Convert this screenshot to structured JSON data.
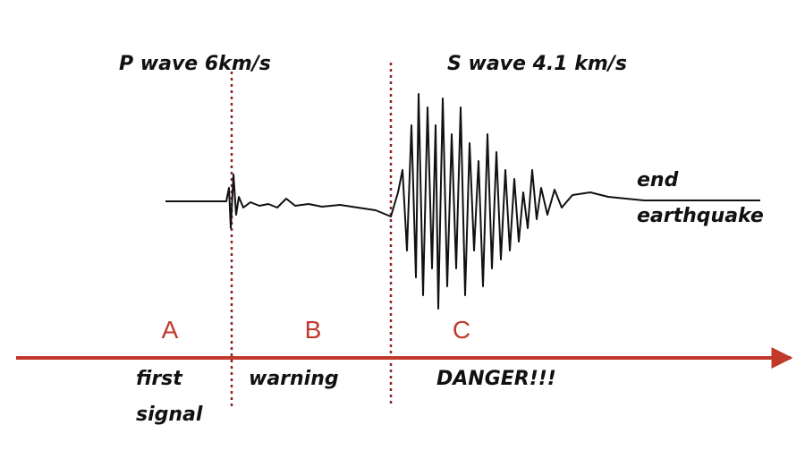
{
  "wave_labels": {
    "p_wave": "P wave 6km/s",
    "s_wave": "S wave 4.1 km/s",
    "end": [
      "end",
      "earthquake"
    ]
  },
  "phases": [
    {
      "letter": "A",
      "label": [
        "first",
        "signal"
      ]
    },
    {
      "letter": "B",
      "label": [
        "warning"
      ]
    },
    {
      "letter": "C",
      "label": [
        "DANGER!!!"
      ]
    }
  ]
}
